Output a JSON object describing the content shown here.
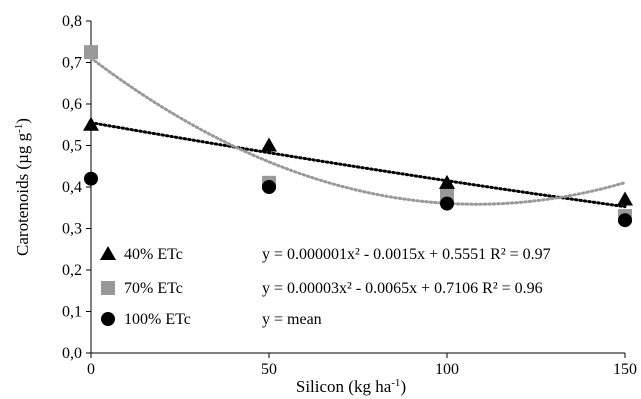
{
  "chart_data": {
    "type": "scatter",
    "xlabel": "Silicon (kg ha",
    "xlabel_sup": "-1",
    "xlabel_end": ")",
    "ylabel": "Carotenoids (µg g",
    "ylabel_sup": "-1",
    "ylabel_end": ")",
    "xlim": [
      0,
      150
    ],
    "ylim": [
      0,
      0.8
    ],
    "x_ticks": [
      0,
      50,
      100,
      150
    ],
    "x_tick_labels": [
      "0",
      "50",
      "100",
      "150"
    ],
    "y_ticks": [
      0,
      0.1,
      0.2,
      0.3,
      0.4,
      0.5,
      0.6,
      0.7,
      0.8
    ],
    "y_tick_labels": [
      "0,0",
      "0,1",
      "0,2",
      "0,3",
      "0,4",
      "0,5",
      "0,6",
      "0,7",
      "0,8"
    ],
    "grid": false,
    "legend_position": "bottom-left",
    "series": [
      {
        "name": "40% ETc",
        "marker": "triangle",
        "color": "#000000",
        "x": [
          0,
          50,
          100,
          150
        ],
        "y": [
          0.55,
          0.5,
          0.41,
          0.37
        ],
        "equation": "y = 0.000001x² - 0.0015x + 0.5551  R² = 0.97",
        "fit": {
          "kind": "quadratic",
          "a": 1e-06,
          "b": -0.0015,
          "c": 0.5551,
          "color": "#000000"
        }
      },
      {
        "name": "70% ETc",
        "marker": "square",
        "color": "#999999",
        "x": [
          0,
          50,
          100,
          150
        ],
        "y": [
          0.725,
          0.41,
          0.38,
          0.33
        ],
        "equation": "y = 0.00003x² - 0.0065x + 0.7106  R² = 0.96",
        "fit": {
          "kind": "quadratic",
          "a": 3e-05,
          "b": -0.0065,
          "c": 0.7106,
          "color": "#999999"
        }
      },
      {
        "name": "100% ETc",
        "marker": "circle",
        "color": "#000000",
        "x": [
          0,
          50,
          100,
          150
        ],
        "y": [
          0.42,
          0.4,
          0.36,
          0.32
        ],
        "equation": "y = mean",
        "fit": null
      }
    ]
  }
}
